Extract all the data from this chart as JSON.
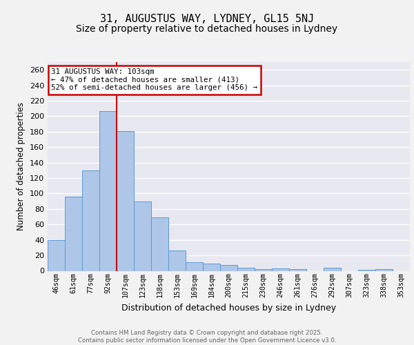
{
  "title1": "31, AUGUSTUS WAY, LYDNEY, GL15 5NJ",
  "title2": "Size of property relative to detached houses in Lydney",
  "xlabel": "Distribution of detached houses by size in Lydney",
  "ylabel": "Number of detached properties",
  "bins": [
    "46sqm",
    "61sqm",
    "77sqm",
    "92sqm",
    "107sqm",
    "123sqm",
    "138sqm",
    "153sqm",
    "169sqm",
    "184sqm",
    "200sqm",
    "215sqm",
    "230sqm",
    "246sqm",
    "261sqm",
    "276sqm",
    "292sqm",
    "307sqm",
    "323sqm",
    "338sqm",
    "353sqm"
  ],
  "values": [
    40,
    96,
    130,
    207,
    181,
    90,
    69,
    26,
    11,
    9,
    8,
    4,
    2,
    3,
    2,
    0,
    4,
    0,
    1,
    2,
    0
  ],
  "bar_color": "#aec6e8",
  "bar_edge_color": "#5b9bd5",
  "vline_pos": 3.5,
  "vline_color": "#cc0000",
  "annotation_line1": "31 AUGUSTUS WAY: 103sqm",
  "annotation_line2": "← 47% of detached houses are smaller (413)",
  "annotation_line3": "52% of semi-detached houses are larger (456) →",
  "annotation_box_color": "#ffffff",
  "annotation_box_edge": "#cc0000",
  "ylim": [
    0,
    270
  ],
  "yticks": [
    0,
    20,
    40,
    60,
    80,
    100,
    120,
    140,
    160,
    180,
    200,
    220,
    240,
    260
  ],
  "background_color": "#e8e8f0",
  "footer_line1": "Contains HM Land Registry data © Crown copyright and database right 2025.",
  "footer_line2": "Contains public sector information licensed under the Open Government Licence v3.0.",
  "title1_fontsize": 11,
  "title2_fontsize": 10
}
